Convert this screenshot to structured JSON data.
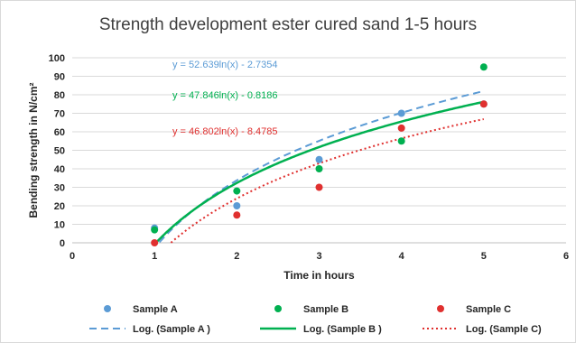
{
  "chart_data": {
    "type": "scatter",
    "title": "Strength development ester cured sand  1-5 hours",
    "xlabel": "Time in hours",
    "ylabel": "Bending strength in N/cm²",
    "xlim": [
      0,
      6
    ],
    "ylim": [
      0,
      100
    ],
    "x_ticks": [
      "0",
      "1",
      "2",
      "3",
      "4",
      "5",
      "6"
    ],
    "y_ticks": [
      "0",
      "10",
      "20",
      "30",
      "40",
      "50",
      "60",
      "70",
      "80",
      "90",
      "100"
    ],
    "grid": "horizontal",
    "legend_position": "bottom",
    "series": [
      {
        "name": "Sample A",
        "color": "#5b9bd5",
        "x": [
          1,
          2,
          3,
          4,
          5
        ],
        "y": [
          8,
          20,
          45,
          70,
          75
        ]
      },
      {
        "name": "Sample B",
        "color": "#00b050",
        "x": [
          1,
          2,
          3,
          4,
          5
        ],
        "y": [
          7,
          28,
          40,
          55,
          95
        ]
      },
      {
        "name": "Sample C",
        "color": "#e0302f",
        "x": [
          1,
          2,
          3,
          4,
          5
        ],
        "y": [
          0,
          15,
          30,
          62,
          75
        ]
      }
    ],
    "trendlines": [
      {
        "name": "Log. (Sample A )",
        "equation": "y = 52.639ln(x) - 2.7354",
        "a": 52.639,
        "b": -2.7354,
        "color": "#5b9bd5",
        "style": "dashed"
      },
      {
        "name": "Log. (Sample B )",
        "equation": "y = 47.846ln(x) - 0.8186",
        "a": 47.846,
        "b": -0.8186,
        "color": "#00b050",
        "style": "solid"
      },
      {
        "name": "Log. (Sample C)",
        "equation": "y = 46.802ln(x) - 8.4785",
        "a": 46.802,
        "b": -8.4785,
        "color": "#e0302f",
        "style": "dotted"
      }
    ]
  }
}
